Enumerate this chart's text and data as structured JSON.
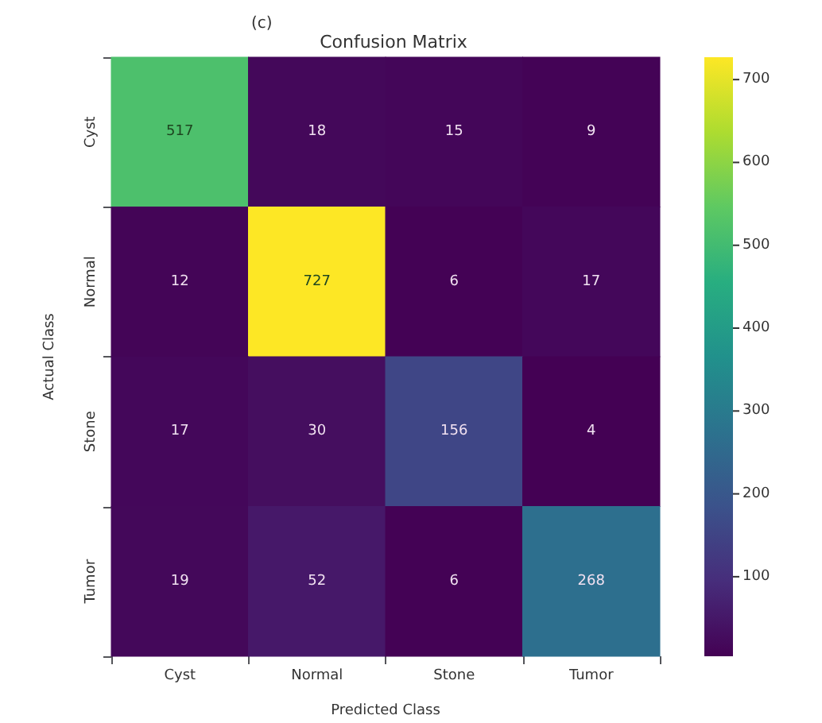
{
  "chart_data": {
    "type": "heatmap",
    "title": "Confusion Matrix",
    "xlabel": "Predicted Class",
    "ylabel": "Actual Class",
    "annotations": [
      "(c)"
    ],
    "categories": [
      "Cyst",
      "Normal",
      "Stone",
      "Tumor"
    ],
    "y_categories": [
      "Cyst",
      "Normal",
      "Stone",
      "Tumor"
    ],
    "cells": [
      [
        517,
        18,
        15,
        9
      ],
      [
        12,
        727,
        6,
        17
      ],
      [
        17,
        30,
        156,
        4
      ],
      [
        19,
        52,
        6,
        268
      ]
    ],
    "data_labels": true,
    "clim": [
      4,
      727
    ],
    "cticks": [
      100,
      200,
      300,
      400,
      500,
      600,
      700
    ]
  }
}
